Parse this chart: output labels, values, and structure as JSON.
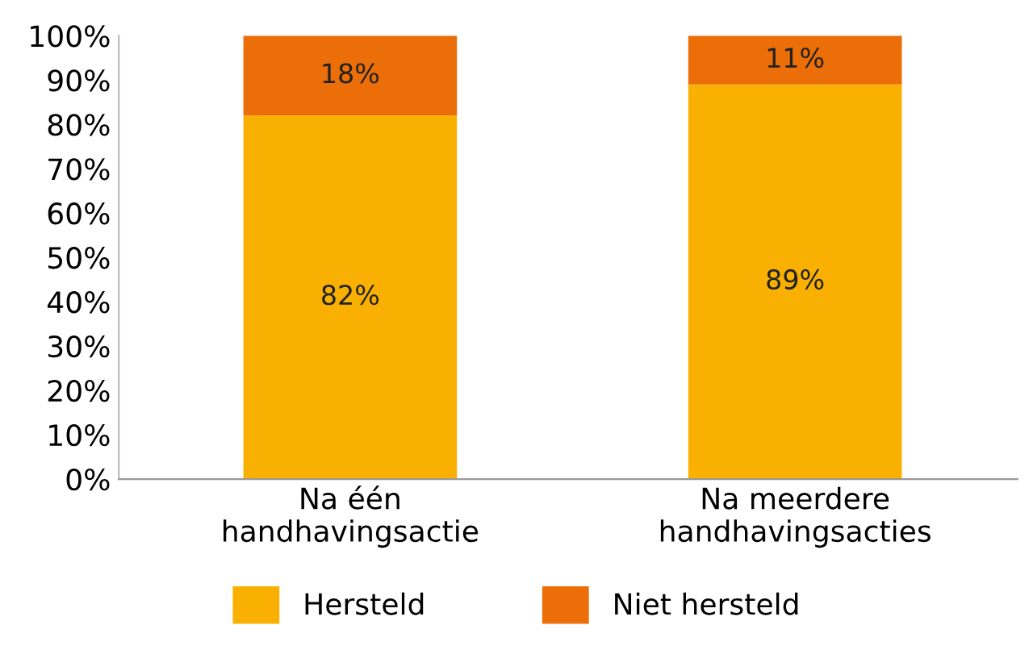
{
  "chart_data": {
    "type": "bar",
    "stacked": true,
    "categories": [
      "Na één\nhandhavingsactie",
      "Na meerdere\nhandhavingsacties"
    ],
    "series": [
      {
        "name": "Hersteld",
        "color": "#f9b000",
        "values": [
          82,
          89
        ],
        "value_labels": [
          "82%",
          "89%"
        ]
      },
      {
        "name": "Niet hersteld",
        "color": "#eb6e08",
        "values": [
          18,
          11
        ],
        "value_labels": [
          "18%",
          "11%"
        ]
      }
    ],
    "ylim": [
      0,
      100
    ],
    "yticks": [
      {
        "value": 0,
        "label": "0%"
      },
      {
        "value": 10,
        "label": "10%"
      },
      {
        "value": 20,
        "label": "20%"
      },
      {
        "value": 30,
        "label": "30%"
      },
      {
        "value": 40,
        "label": "40%"
      },
      {
        "value": 50,
        "label": "50%"
      },
      {
        "value": 60,
        "label": "60%"
      },
      {
        "value": 70,
        "label": "70%"
      },
      {
        "value": 80,
        "label": "80%"
      },
      {
        "value": 90,
        "label": "90%"
      },
      {
        "value": 100,
        "label": "100%"
      }
    ],
    "grid": false,
    "legend": "bottom"
  }
}
